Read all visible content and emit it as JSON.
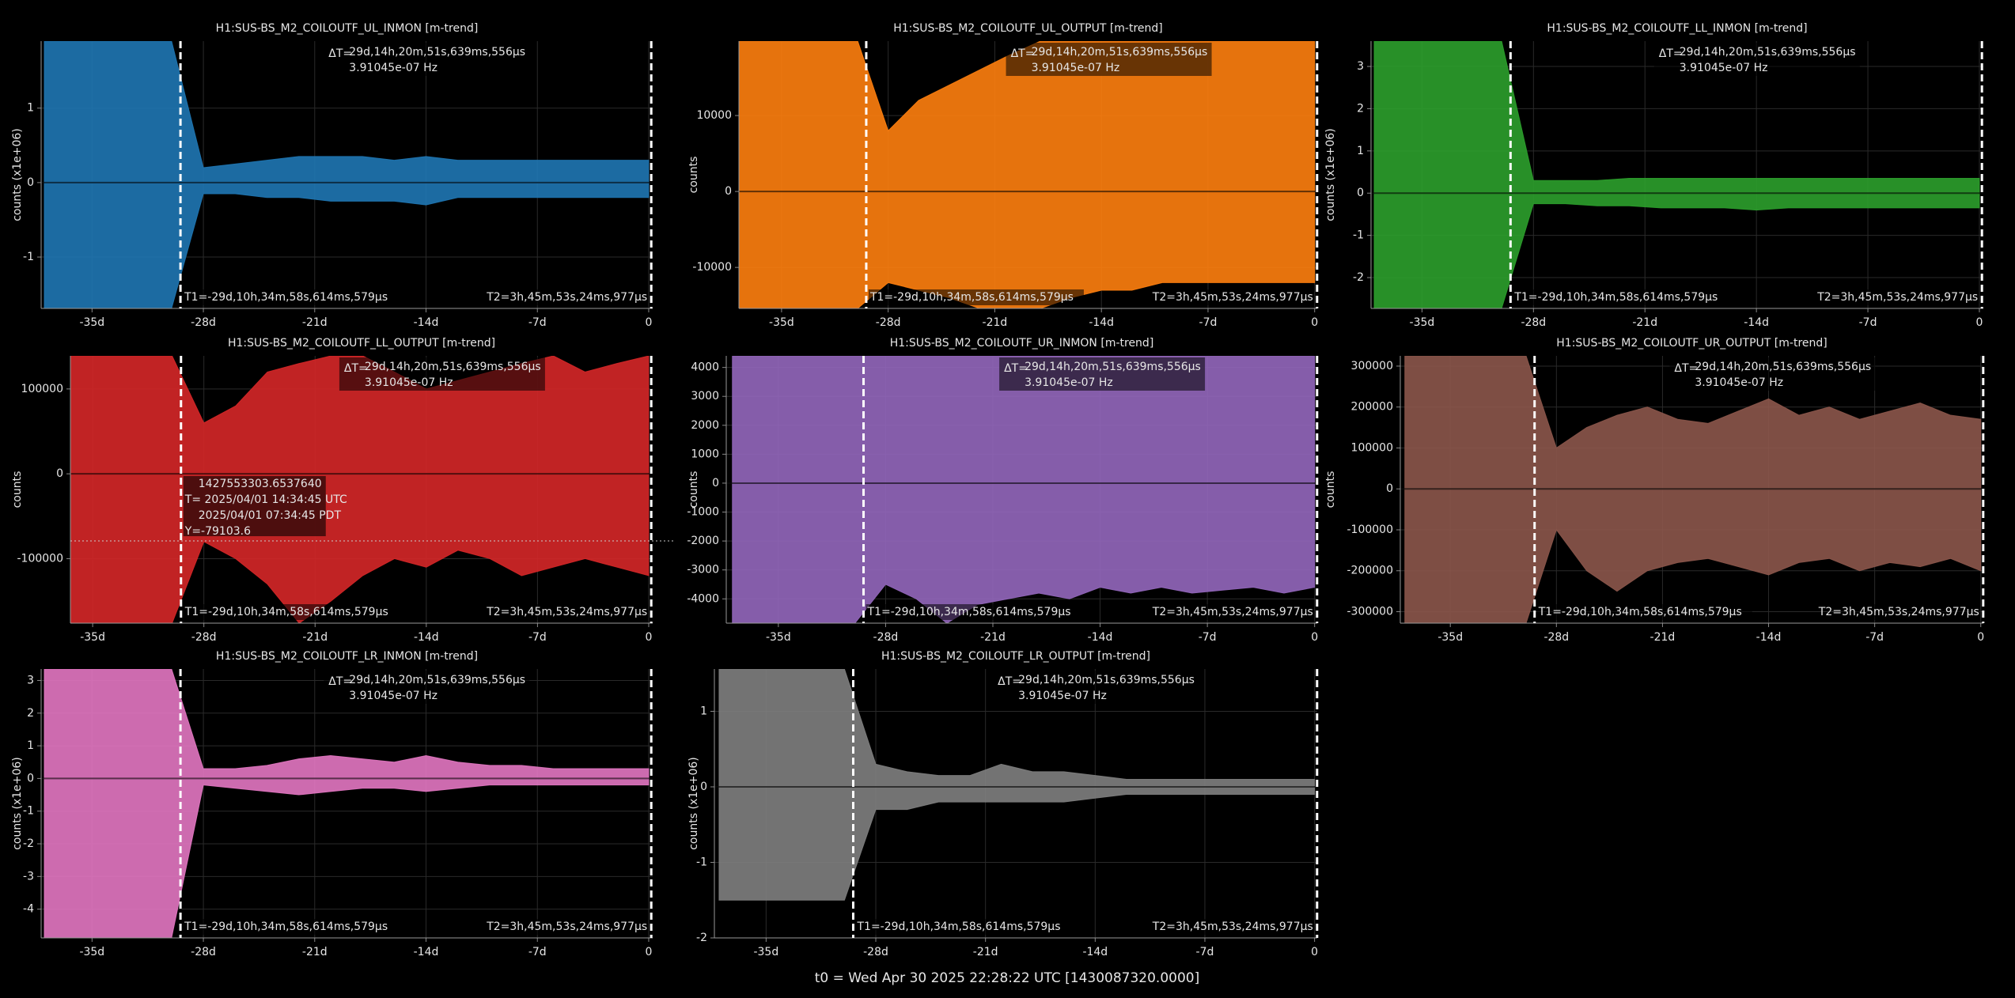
{
  "chart_data": [
    {
      "type": "band",
      "title": "H1:SUS-BS_M2_COILOUTF_UL_INMON [m-trend]",
      "ylabel": "counts (x1e+06)",
      "color": "#1f77b4",
      "x": [
        -38,
        -36,
        -34,
        -32,
        -30,
        -28,
        -26,
        -24,
        -22,
        -20,
        -18,
        -16,
        -14,
        -12,
        -10,
        -8,
        -6,
        -4,
        -2,
        0
      ],
      "max": [
        1.9,
        1.9,
        1.9,
        1.9,
        1.9,
        0.2,
        0.25,
        0.3,
        0.35,
        0.35,
        0.35,
        0.3,
        0.35,
        0.3,
        0.3,
        0.3,
        0.3,
        0.3,
        0.3,
        0.3
      ],
      "min": [
        -1.69,
        -1.69,
        -1.69,
        -1.69,
        -1.69,
        -0.15,
        -0.15,
        -0.2,
        -0.2,
        -0.25,
        -0.25,
        -0.25,
        -0.3,
        -0.2,
        -0.2,
        -0.2,
        -0.2,
        -0.2,
        -0.2,
        -0.2
      ],
      "xlim": [
        -38.2,
        0.25
      ],
      "ylim": [
        -1.69,
        1.9
      ],
      "yticks": [
        -1,
        0,
        1
      ],
      "xticks": [
        {
          "value": -35,
          "label": "-35d"
        },
        {
          "value": -28,
          "label": "-28d"
        },
        {
          "value": -21,
          "label": "-21d"
        },
        {
          "value": -14,
          "label": "-14d"
        },
        {
          "value": -7,
          "label": "-7d"
        },
        0
      ],
      "grid": true,
      "cursors": {
        "t1": -29.44,
        "t2": 0.16,
        "t1_label": "T1=-29d,10h,34m,58s,614ms,579μs",
        "t2_label": "T2=3h,45m,53s,24ms,977μs",
        "delta_label": "ΔT=",
        "delta_time": "29d,14h,20m,51s,639ms,556μs",
        "delta_freq": "3.91045e-07 Hz"
      }
    },
    {
      "type": "band",
      "title": "H1:SUS-BS_M2_COILOUTF_UL_OUTPUT [m-trend]",
      "ylabel": "counts",
      "color": "#ff7f0e",
      "x": [
        -38,
        -36,
        -34,
        -32,
        -30,
        -28,
        -26,
        -24,
        -22,
        -20,
        -18,
        -16,
        -14,
        -12,
        -10,
        -8,
        -6,
        -4,
        -2,
        0
      ],
      "max": [
        19800,
        19800,
        19800,
        19800,
        19800,
        8000,
        12000,
        14000,
        16000,
        18000,
        19800,
        19800,
        19800,
        19800,
        19800,
        19800,
        19800,
        19800,
        19800,
        19800
      ],
      "min": [
        -15400,
        -15400,
        -15400,
        -15400,
        -15400,
        -12000,
        -13000,
        -14000,
        -15400,
        -15400,
        -15400,
        -14000,
        -13000,
        -13000,
        -12000,
        -12000,
        -12000,
        -12000,
        -12000,
        -12000
      ],
      "xlim": [
        -37.8,
        0.17
      ],
      "ylim": [
        -15400,
        19800
      ],
      "yticks": [
        -10000,
        0,
        10000
      ],
      "xticks": [
        {
          "value": -35,
          "label": "-35d"
        },
        {
          "value": -28,
          "label": "-28d"
        },
        {
          "value": -21,
          "label": "-21d"
        },
        {
          "value": -14,
          "label": "-14d"
        },
        {
          "value": -7,
          "label": "-7d"
        },
        0
      ],
      "grid": true,
      "cursors": {
        "t1": -29.44,
        "t2": 0.16,
        "t1_label": "T1=-29d,10h,34m,58s,614ms,579μs",
        "t2_label": "T2=3h,45m,53s,24ms,977μs",
        "delta_label": "ΔT=",
        "delta_time": "29d,14h,20m,51s,639ms,556μs",
        "delta_freq": "3.91045e-07 Hz"
      }
    },
    {
      "type": "band",
      "title": "H1:SUS-BS_M2_COILOUTF_LL_INMON [m-trend]",
      "ylabel": "counts (x1e+06)",
      "color": "#2ca02c",
      "x": [
        -38,
        -36,
        -34,
        -32,
        -30,
        -28,
        -26,
        -24,
        -22,
        -20,
        -18,
        -16,
        -14,
        -12,
        -10,
        -8,
        -6,
        -4,
        -2,
        0
      ],
      "max": [
        3.6,
        3.6,
        3.6,
        3.6,
        3.6,
        0.3,
        0.3,
        0.3,
        0.35,
        0.35,
        0.35,
        0.35,
        0.35,
        0.35,
        0.35,
        0.35,
        0.35,
        0.35,
        0.35,
        0.35
      ],
      "min": [
        -2.73,
        -2.73,
        -2.73,
        -2.73,
        -2.73,
        -0.25,
        -0.25,
        -0.3,
        -0.3,
        -0.35,
        -0.35,
        -0.35,
        -0.4,
        -0.35,
        -0.35,
        -0.35,
        -0.35,
        -0.35,
        -0.35,
        -0.35
      ],
      "xlim": [
        -38.2,
        0.25
      ],
      "ylim": [
        -2.73,
        3.6
      ],
      "yticks": [
        -2,
        -1,
        0,
        1,
        2,
        3
      ],
      "xticks": [
        {
          "value": -35,
          "label": "-35d"
        },
        {
          "value": -28,
          "label": "-28d"
        },
        {
          "value": -21,
          "label": "-21d"
        },
        {
          "value": -14,
          "label": "-14d"
        },
        {
          "value": -7,
          "label": "-7d"
        },
        0
      ],
      "grid": true,
      "cursors": {
        "t1": -29.44,
        "t2": 0.16,
        "t1_label": "T1=-29d,10h,34m,58s,614ms,579μs",
        "t2_label": "T2=3h,45m,53s,24ms,977μs",
        "delta_label": "ΔT=",
        "delta_time": "29d,14h,20m,51s,639ms,556μs",
        "delta_freq": "3.91045e-07 Hz"
      }
    },
    {
      "type": "band",
      "title": "H1:SUS-BS_M2_COILOUTF_LL_OUTPUT [m-trend]",
      "ylabel": "counts",
      "color": "#d62728",
      "x": [
        -38,
        -36,
        -34,
        -32,
        -30,
        -28,
        -26,
        -24,
        -22,
        -20,
        -18,
        -16,
        -14,
        -12,
        -10,
        -8,
        -6,
        -4,
        -2,
        0
      ],
      "max": [
        139000,
        139000,
        139000,
        139000,
        139000,
        60000,
        80000,
        120000,
        130000,
        139000,
        139000,
        120000,
        100000,
        110000,
        120000,
        130000,
        139000,
        120000,
        130000,
        139000
      ],
      "min": [
        -176000,
        -176000,
        -176000,
        -176000,
        -176000,
        -80000,
        -100000,
        -130000,
        -176000,
        -150000,
        -120000,
        -100000,
        -110000,
        -90000,
        -100000,
        -120000,
        -110000,
        -100000,
        -110000,
        -120000
      ],
      "xlim": [
        -36.4,
        0.25
      ],
      "ylim": [
        -176000,
        139000
      ],
      "yticks": [
        -100000,
        0,
        100000
      ],
      "xticks": [
        {
          "value": -35,
          "label": "-35d"
        },
        {
          "value": -28,
          "label": "-28d"
        },
        {
          "value": -21,
          "label": "-21d"
        },
        {
          "value": -14,
          "label": "-14d"
        },
        {
          "value": -7,
          "label": "-7d"
        },
        0
      ],
      "grid": true,
      "cursors": {
        "t1": -29.44,
        "t2": 0.16,
        "t1_label": "T1=-29d,10h,34m,58s,614ms,579μs",
        "t2_label": "T2=3h,45m,53s,24ms,977μs",
        "delta_label": "ΔT=",
        "delta_time": "29d,14h,20m,51s,639ms,556μs",
        "delta_freq": "3.91045e-07 Hz"
      },
      "crosshair": {
        "y": -79103.6,
        "lines": [
          "1427553303.6537640",
          "T= 2025/04/01 14:34:45 UTC",
          "2025/04/01 07:34:45 PDT",
          "Y=-79103.6"
        ]
      }
    },
    {
      "type": "band",
      "title": "H1:SUS-BS_M2_COILOUTF_UR_INMON [m-trend]",
      "ylabel": "counts",
      "color": "#9467bd",
      "x": [
        -38,
        -36,
        -34,
        -32,
        -30,
        -28,
        -26,
        -24,
        -22,
        -20,
        -18,
        -16,
        -14,
        -12,
        -10,
        -8,
        -6,
        -4,
        -2,
        0
      ],
      "max": [
        4400,
        4400,
        4400,
        4400,
        4400,
        4400,
        4400,
        4400,
        4400,
        4400,
        4400,
        4400,
        4400,
        4400,
        4400,
        4400,
        4400,
        4400,
        4400,
        4400
      ],
      "min": [
        -4840,
        -4840,
        -4840,
        -4840,
        -4840,
        -3500,
        -4000,
        -4840,
        -4200,
        -4000,
        -3800,
        -4000,
        -3600,
        -3800,
        -3600,
        -3800,
        -3700,
        -3600,
        -3800,
        -3600
      ],
      "xlim": [
        -38.4,
        0.17
      ],
      "ylim": [
        -4840,
        4400
      ],
      "yticks": [
        -4000,
        -3000,
        -2000,
        -1000,
        0,
        1000,
        2000,
        3000,
        4000
      ],
      "xticks": [
        {
          "value": -35,
          "label": "-35d"
        },
        {
          "value": -28,
          "label": "-28d"
        },
        {
          "value": -21,
          "label": "-21d"
        },
        {
          "value": -14,
          "label": "-14d"
        },
        {
          "value": -7,
          "label": "-7d"
        },
        0
      ],
      "grid": true,
      "cursors": {
        "t1": -29.44,
        "t2": 0.16,
        "t1_label": "T1=-29d,10h,34m,58s,614ms,579μs",
        "t2_label": "T2=3h,45m,53s,24ms,977μs",
        "delta_label": "ΔT=",
        "delta_time": "29d,14h,20m,51s,639ms,556μs",
        "delta_freq": "3.91045e-07 Hz"
      }
    },
    {
      "type": "band",
      "title": "H1:SUS-BS_M2_COILOUTF_UR_OUTPUT [m-trend]",
      "ylabel": "counts",
      "color": "#8c564b",
      "x": [
        -38,
        -36,
        -34,
        -32,
        -30,
        -28,
        -26,
        -24,
        -22,
        -20,
        -18,
        -16,
        -14,
        -12,
        -10,
        -8,
        -6,
        -4,
        -2,
        0
      ],
      "max": [
        325000,
        325000,
        325000,
        325000,
        325000,
        100000,
        150000,
        180000,
        200000,
        170000,
        160000,
        190000,
        220000,
        180000,
        200000,
        170000,
        190000,
        210000,
        180000,
        170000
      ],
      "min": [
        -328000,
        -328000,
        -328000,
        -328000,
        -328000,
        -100000,
        -200000,
        -250000,
        -200000,
        -180000,
        -170000,
        -190000,
        -210000,
        -180000,
        -170000,
        -200000,
        -180000,
        -190000,
        -170000,
        -200000
      ],
      "xlim": [
        -38.3,
        0.17
      ],
      "ylim": [
        -328000,
        325000
      ],
      "yticks": [
        -300000,
        -200000,
        -100000,
        0,
        100000,
        200000,
        300000
      ],
      "xticks": [
        {
          "value": -35,
          "label": "-35d"
        },
        {
          "value": -28,
          "label": "-28d"
        },
        {
          "value": -21,
          "label": "-21d"
        },
        {
          "value": -14,
          "label": "-14d"
        },
        {
          "value": -7,
          "label": "-7d"
        },
        0
      ],
      "grid": true,
      "cursors": {
        "t1": -29.44,
        "t2": 0.16,
        "t1_label": "T1=-29d,10h,34m,58s,614ms,579μs",
        "t2_label": "T2=3h,45m,53s,24ms,977μs",
        "delta_label": "ΔT=",
        "delta_time": "29d,14h,20m,51s,639ms,556μs",
        "delta_freq": "3.91045e-07 Hz"
      }
    },
    {
      "type": "band",
      "title": "H1:SUS-BS_M2_COILOUTF_LR_INMON [m-trend]",
      "ylabel": "counts (x1e+06)",
      "color": "#e377c2",
      "x": [
        -38,
        -36,
        -34,
        -32,
        -30,
        -28,
        -26,
        -24,
        -22,
        -20,
        -18,
        -16,
        -14,
        -12,
        -10,
        -8,
        -6,
        -4,
        -2,
        0
      ],
      "max": [
        3.35,
        3.35,
        3.35,
        3.35,
        3.35,
        0.3,
        0.3,
        0.4,
        0.6,
        0.7,
        0.6,
        0.5,
        0.7,
        0.5,
        0.4,
        0.4,
        0.3,
        0.3,
        0.3,
        0.3
      ],
      "min": [
        -4.88,
        -4.88,
        -4.88,
        -4.88,
        -4.88,
        -0.2,
        -0.3,
        -0.4,
        -0.5,
        -0.4,
        -0.3,
        -0.3,
        -0.4,
        -0.3,
        -0.2,
        -0.2,
        -0.2,
        -0.2,
        -0.2,
        -0.2
      ],
      "xlim": [
        -38.2,
        0.25
      ],
      "ylim": [
        -4.88,
        3.35
      ],
      "yticks": [
        -4,
        -3,
        -2,
        -1,
        0,
        1,
        2,
        3
      ],
      "xticks": [
        {
          "value": -35,
          "label": "-35d"
        },
        {
          "value": -28,
          "label": "-28d"
        },
        {
          "value": -21,
          "label": "-21d"
        },
        {
          "value": -14,
          "label": "-14d"
        },
        {
          "value": -7,
          "label": "-7d"
        },
        0
      ],
      "grid": true,
      "cursors": {
        "t1": -29.44,
        "t2": 0.16,
        "t1_label": "T1=-29d,10h,34m,58s,614ms,579μs",
        "t2_label": "T2=3h,45m,53s,24ms,977μs",
        "delta_label": "ΔT=",
        "delta_time": "29d,14h,20m,51s,639ms,556μs",
        "delta_freq": "3.91045e-07 Hz"
      }
    },
    {
      "type": "band",
      "title": "H1:SUS-BS_M2_COILOUTF_LR_OUTPUT [m-trend]",
      "ylabel": "counts (x1e+06)",
      "color": "#7f7f7f",
      "x": [
        -38,
        -36,
        -34,
        -32,
        -30,
        -28,
        -26,
        -24,
        -22,
        -20,
        -18,
        -16,
        -14,
        -12,
        -10,
        -8,
        -6,
        -4,
        -2,
        0
      ],
      "max": [
        1.56,
        1.56,
        1.56,
        1.56,
        1.56,
        0.3,
        0.2,
        0.15,
        0.15,
        0.3,
        0.2,
        0.2,
        0.15,
        0.1,
        0.1,
        0.1,
        0.1,
        0.1,
        0.1,
        0.1
      ],
      "min": [
        -1.5,
        -1.5,
        -1.5,
        -1.5,
        -1.5,
        -0.3,
        -0.3,
        -0.2,
        -0.2,
        -0.2,
        -0.2,
        -0.2,
        -0.15,
        -0.1,
        -0.1,
        -0.1,
        -0.1,
        -0.1,
        -0.1,
        -0.1
      ],
      "xlim": [
        -38.3,
        0.17
      ],
      "ylim": [
        -2,
        1.56
      ],
      "yticks": [
        -2,
        -1,
        0,
        1
      ],
      "xticks": [
        {
          "value": -35,
          "label": "-35d"
        },
        {
          "value": -28,
          "label": "-28d"
        },
        {
          "value": -21,
          "label": "-21d"
        },
        {
          "value": -14,
          "label": "-14d"
        },
        {
          "value": -7,
          "label": "-7d"
        },
        0
      ],
      "grid": true,
      "cursors": {
        "t1": -29.44,
        "t2": 0.16,
        "t1_label": "T1=-29d,10h,34m,58s,614ms,579μs",
        "t2_label": "T2=3h,45m,53s,24ms,977μs",
        "delta_label": "ΔT=",
        "delta_time": "29d,14h,20m,51s,639ms,556μs",
        "delta_freq": "3.91045e-07 Hz"
      }
    }
  ],
  "footer": "t0 = Wed Apr 30 2025 22:28:22 UTC [1430087320.0000]"
}
